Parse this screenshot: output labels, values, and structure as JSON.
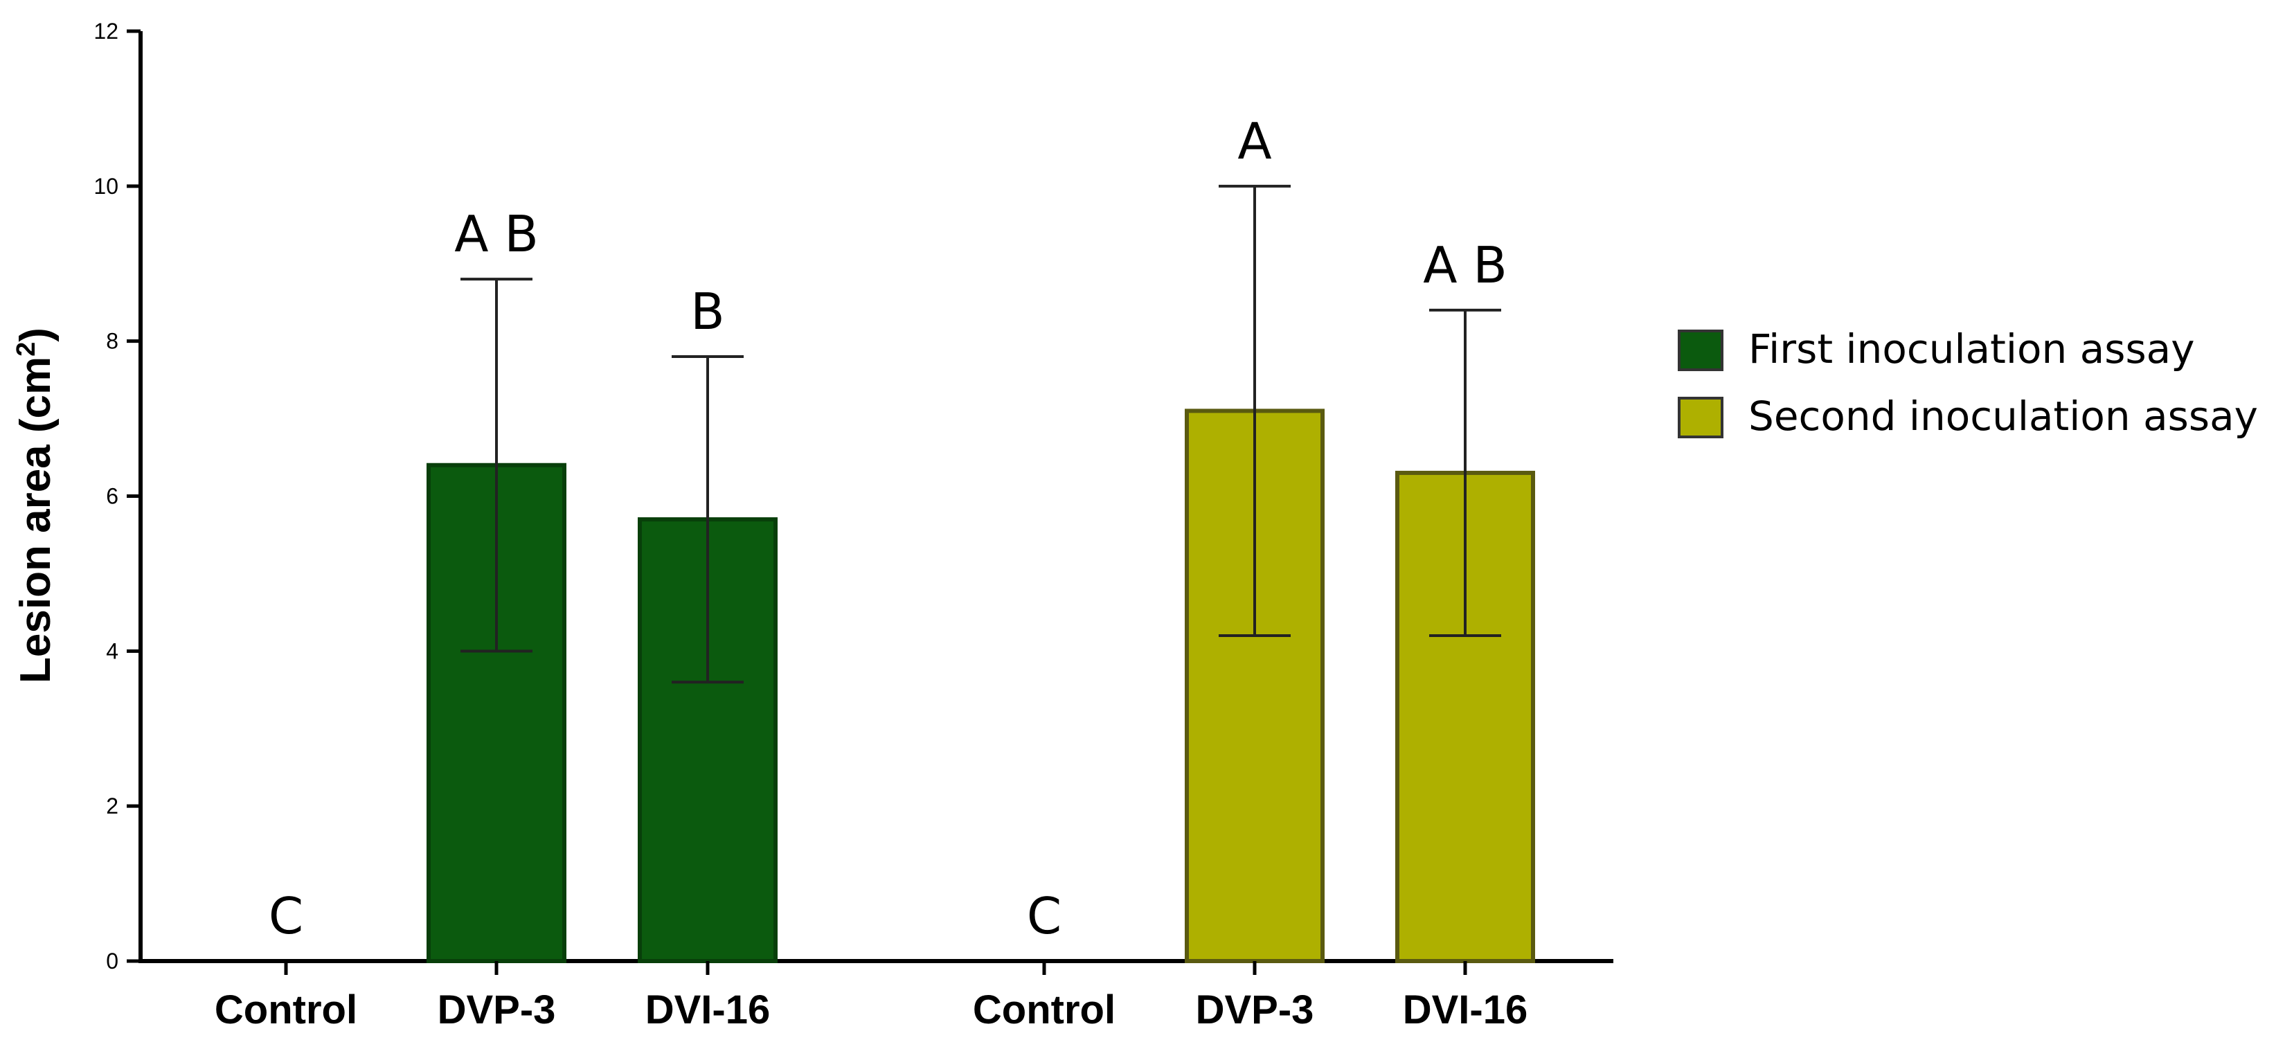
{
  "chart_data": {
    "type": "bar",
    "ylabel": "Lesion area (cm",
    "ylabel_superscript": "2",
    "ylabel_close": ")",
    "ylim": [
      0,
      12
    ],
    "yticks": [
      0,
      2,
      4,
      6,
      8,
      10,
      12
    ],
    "legend_position": "right",
    "groups": [
      {
        "series": "First inoculation assay",
        "color": "#0b5a0e",
        "edge": "#083f0a",
        "bars": [
          {
            "category": "Control",
            "value": 0,
            "error_low": 0,
            "error_high": 0,
            "letters": "C"
          },
          {
            "category": "DVP-3",
            "value": 6.4,
            "error_low": 4.0,
            "error_high": 8.8,
            "letters": "A B"
          },
          {
            "category": "DVI-16",
            "value": 5.7,
            "error_low": 3.6,
            "error_high": 7.8,
            "letters": "B"
          }
        ]
      },
      {
        "series": "Second inoculation assay",
        "color": "#aeb000",
        "edge": "#5a5a10",
        "bars": [
          {
            "category": "Control",
            "value": 0,
            "error_low": 0,
            "error_high": 0,
            "letters": "C"
          },
          {
            "category": "DVP-3",
            "value": 7.1,
            "error_low": 4.2,
            "error_high": 10.0,
            "letters": "A"
          },
          {
            "category": "DVI-16",
            "value": 6.3,
            "error_low": 4.2,
            "error_high": 8.4,
            "letters": "A B"
          }
        ]
      }
    ],
    "legend": [
      {
        "label": "First inoculation assay",
        "color": "#0b5a0e"
      },
      {
        "label": "Second inoculation assay",
        "color": "#aeb000"
      }
    ]
  }
}
